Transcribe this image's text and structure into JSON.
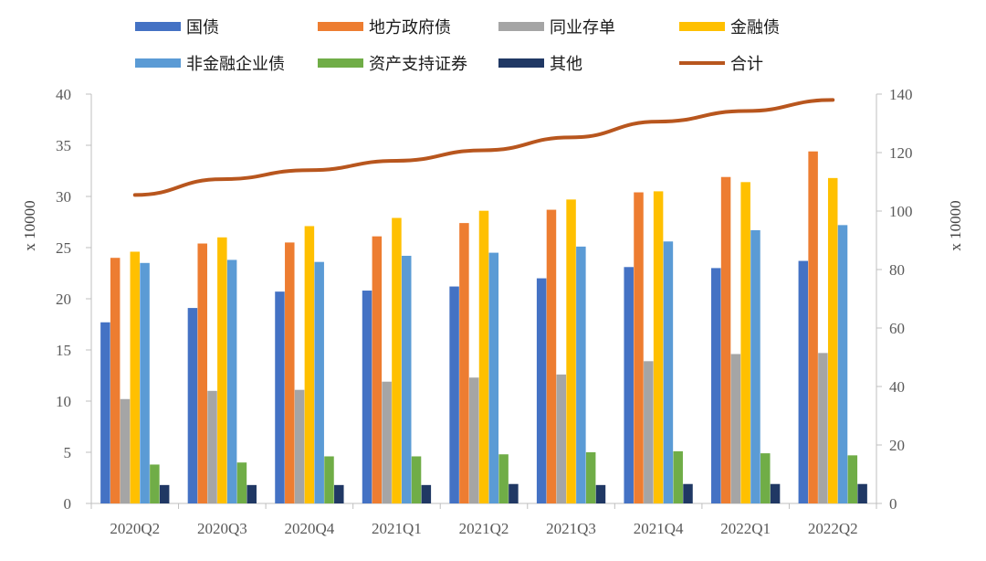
{
  "chart_data": {
    "type": "bar",
    "categories": [
      "2020Q2",
      "2020Q3",
      "2020Q4",
      "2021Q1",
      "2021Q2",
      "2021Q3",
      "2021Q4",
      "2022Q1",
      "2022Q2"
    ],
    "y_left": {
      "label": "x 10000",
      "range": [
        0,
        40
      ],
      "ticks": [
        "0",
        "5",
        "10",
        "15",
        "20",
        "25",
        "30",
        "35",
        "40"
      ]
    },
    "y_right": {
      "label": "x 10000",
      "range": [
        0,
        140
      ],
      "ticks": [
        "0",
        "20",
        "40",
        "60",
        "80",
        "100",
        "120",
        "140"
      ]
    },
    "grid": false,
    "legend_position": "top",
    "series": [
      {
        "name": "国债",
        "color": "#4472C4",
        "axis": "left",
        "type": "bar",
        "values": [
          17.7,
          19.1,
          20.7,
          20.8,
          21.2,
          22.0,
          23.1,
          23.0,
          23.7
        ]
      },
      {
        "name": "地方政府债",
        "color": "#ED7D31",
        "axis": "left",
        "type": "bar",
        "values": [
          24.0,
          25.4,
          25.5,
          26.1,
          27.4,
          28.7,
          30.4,
          31.9,
          34.4
        ]
      },
      {
        "name": "同业存单",
        "color": "#A5A5A5",
        "axis": "left",
        "type": "bar",
        "values": [
          10.2,
          11.0,
          11.1,
          11.9,
          12.3,
          12.6,
          13.9,
          14.6,
          14.7
        ]
      },
      {
        "name": "金融债",
        "color": "#FFC000",
        "axis": "left",
        "type": "bar",
        "values": [
          24.6,
          26.0,
          27.1,
          27.9,
          28.6,
          29.7,
          30.5,
          31.4,
          31.8
        ]
      },
      {
        "name": "非金融企业债",
        "color": "#5B9BD5",
        "axis": "left",
        "type": "bar",
        "values": [
          23.5,
          23.8,
          23.6,
          24.2,
          24.5,
          25.1,
          25.6,
          26.7,
          27.2
        ]
      },
      {
        "name": "资产支持证券",
        "color": "#70AD47",
        "axis": "left",
        "type": "bar",
        "values": [
          3.8,
          4.0,
          4.6,
          4.6,
          4.8,
          5.0,
          5.1,
          4.9,
          4.7
        ]
      },
      {
        "name": "其他",
        "color": "#203864",
        "axis": "left",
        "type": "bar",
        "values": [
          1.8,
          1.8,
          1.8,
          1.8,
          1.9,
          1.8,
          1.9,
          1.9,
          1.9
        ]
      },
      {
        "name": "合计",
        "color": "#C0504D",
        "axis": "right",
        "type": "line",
        "values": [
          105.5,
          110.9,
          114.0,
          117.2,
          120.8,
          125.2,
          130.6,
          134.2,
          138.0
        ]
      }
    ]
  }
}
